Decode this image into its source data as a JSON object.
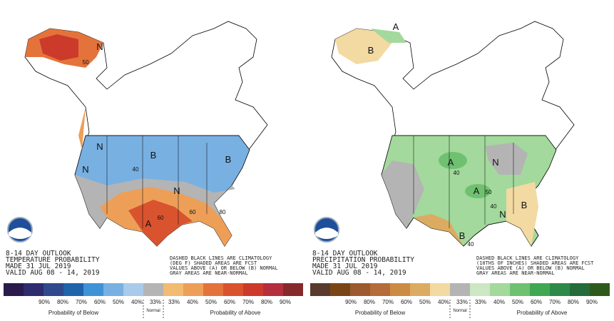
{
  "panels": [
    {
      "outlook": "8-14 DAY OUTLOOK",
      "kind": "TEMPERATURE PROBABILITY",
      "made": "MADE  31 JUL 2019",
      "valid": "VALID  AUG 08 - 14, 2019",
      "notes": [
        "DASHED BLACK LINES ARE CLIMATOLOGY",
        "(DEG F) SHADED AREAS ARE FCST",
        "VALUES ABOVE (A) OR BELOW (B) NORMAL",
        "GRAY AREAS ARE NEAR-NORMAL"
      ],
      "map_labels": [
        "N",
        "N",
        "B",
        "B",
        "N",
        "N",
        "A",
        "40",
        "50",
        "60",
        "60",
        "80"
      ],
      "colors": [
        "#2a1b4c",
        "#2e2c6e",
        "#2f4a8c",
        "#1f63ab",
        "#3e93d6",
        "#78b0e2",
        "#a9caeb",
        "#b4b4b4",
        "#f2bb72",
        "#ed9f58",
        "#e4733b",
        "#d9532e",
        "#cc3a2b",
        "#b42e3d",
        "#86292b"
      ],
      "scale_labels": [
        "90%",
        "80%",
        "70%",
        "60%",
        "50%",
        "40%",
        "33%",
        "33%",
        "40%",
        "50%",
        "60%",
        "70%",
        "80%",
        "90%"
      ],
      "below": "Probability of Below",
      "normal": "Normal",
      "above": "Probability of Above"
    },
    {
      "outlook": "8-14 DAY OUTLOOK",
      "kind": "PRECIPITATION PROBABILITY",
      "made": "MADE  31 JUL 2019",
      "valid": "VALID  AUG 08 - 14, 2019",
      "notes": [
        "DASHED BLACK LINES ARE CLIMATOLOGY",
        "(10THS OF INCHES) SHADED AREAS ARE FCST",
        "VALUES ABOVE (A) OR BELOW (B) NORMAL",
        "GRAY AREAS ARE NEAR-NORMAL"
      ],
      "map_labels": [
        "A",
        "B",
        "A",
        "N",
        "A",
        "N",
        "B",
        "B",
        "40",
        "50",
        "40",
        "40"
      ],
      "colors": [
        "#5a3a2c",
        "#7a4515",
        "#9c5a30",
        "#b56b3a",
        "#cb8b42",
        "#dcab62",
        "#f3d9a2",
        "#b4b4b4",
        "#cbe7c3",
        "#a3d99c",
        "#6fc171",
        "#40a852",
        "#2e8a49",
        "#266b3b",
        "#2d5a1b"
      ],
      "scale_labels": [
        "90%",
        "80%",
        "70%",
        "60%",
        "50%",
        "40%",
        "33%",
        "33%",
        "40%",
        "50%",
        "60%",
        "70%",
        "80%",
        "90%"
      ],
      "below": "Probability of Below",
      "normal": "Normal",
      "above": "Probability of Above"
    }
  ]
}
